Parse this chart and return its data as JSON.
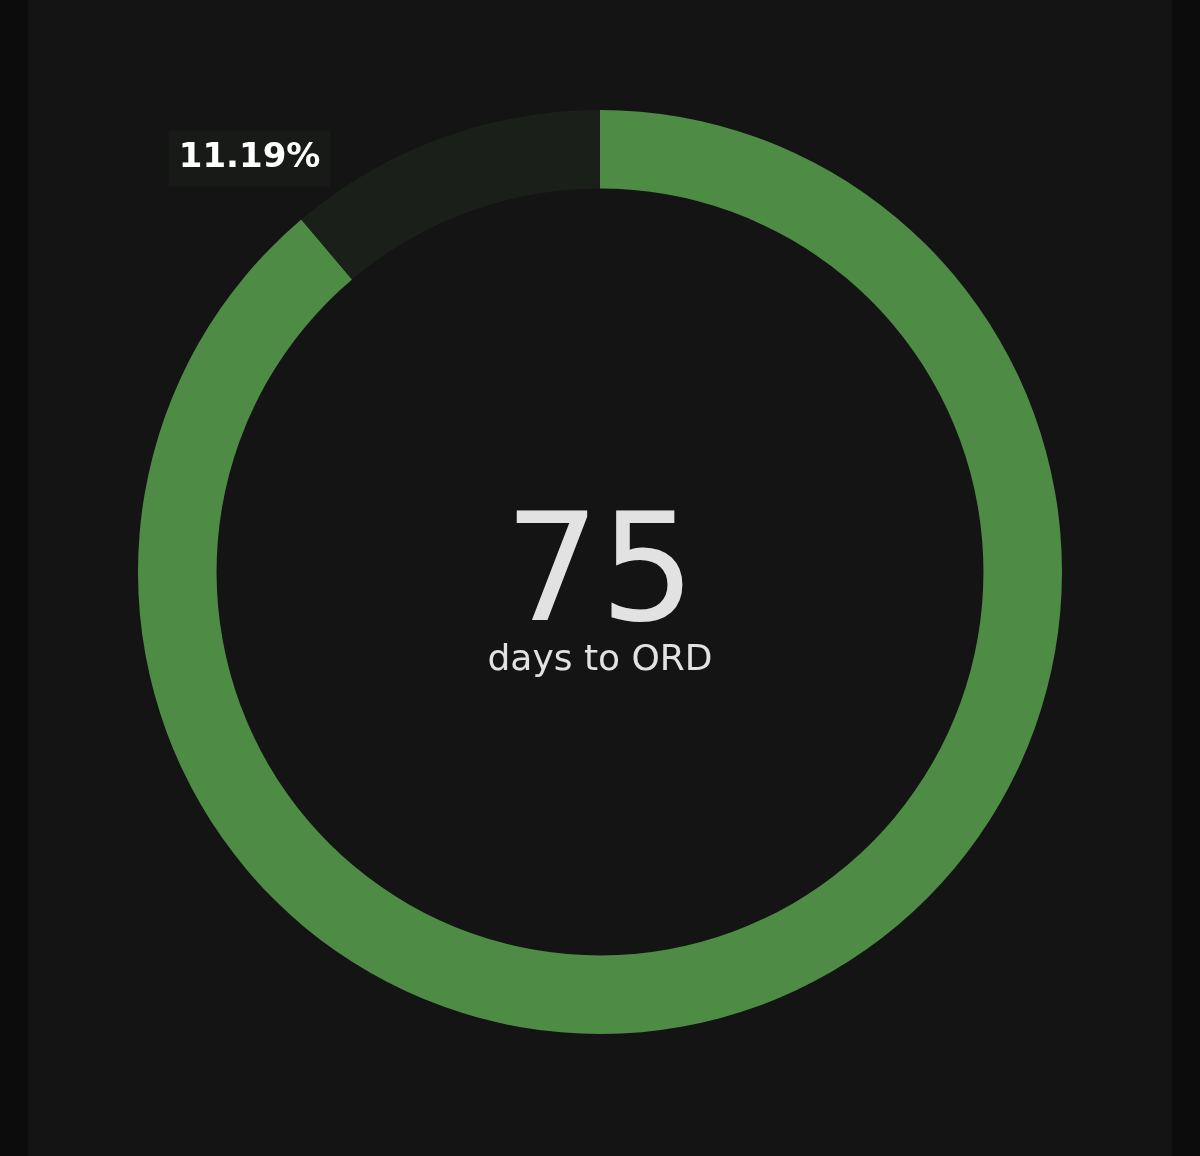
{
  "chart_data": {
    "type": "donut",
    "categories": [
      null,
      null
    ],
    "values": [
      88.81,
      11.19
    ],
    "colors": [
      "#4e8c45",
      "#1b1f1a"
    ],
    "value_labels": [
      null,
      "11.19%"
    ],
    "annotations": [
      "75",
      "days to ORD"
    ],
    "legend": false
  }
}
